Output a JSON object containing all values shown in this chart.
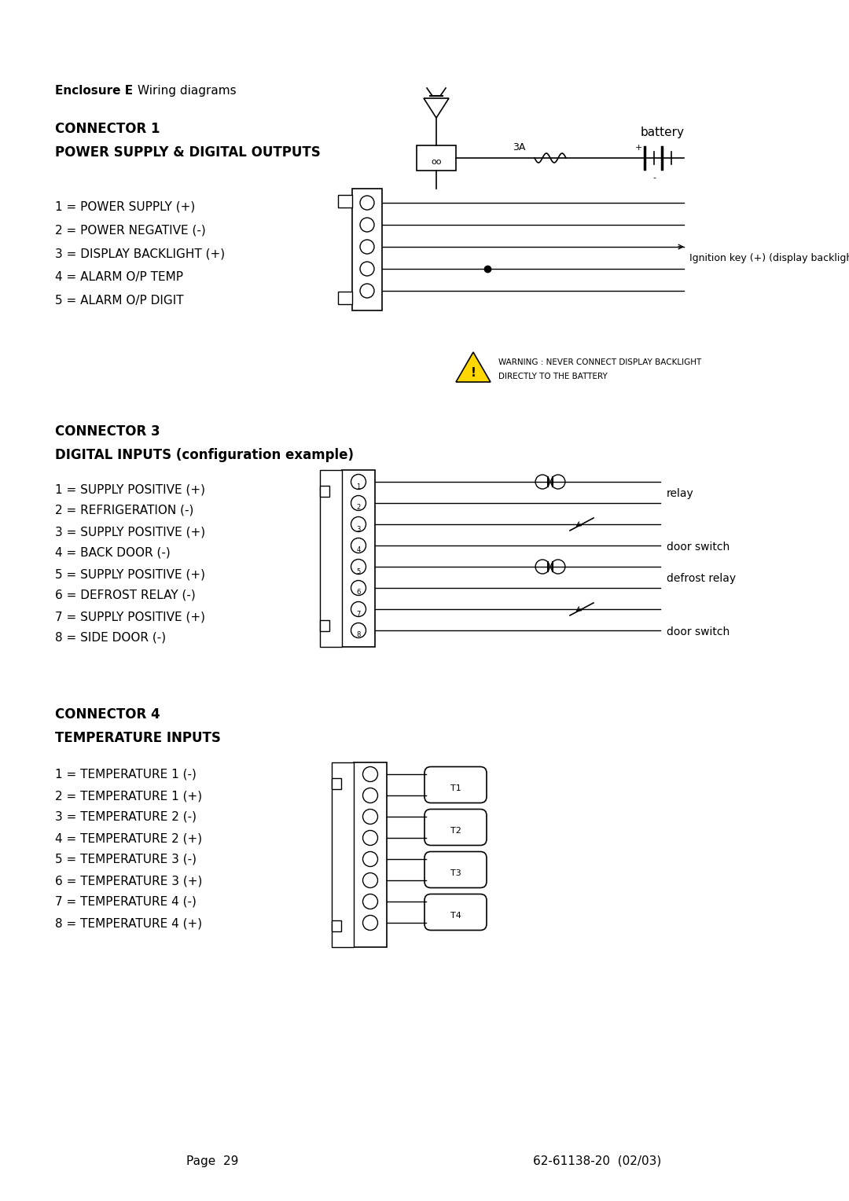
{
  "bg_color": "#ffffff",
  "header_title": "Enclosure E",
  "header_subtitle": "Wiring diagrams",
  "page_num": "Page  29",
  "doc_num": "62-61138-20  (02/03)",
  "conn1_title1": "CONNECTOR 1",
  "conn1_title2": "POWER SUPPLY & DIGITAL OUTPUTS",
  "conn1_pins": [
    "1 = POWER SUPPLY (+)",
    "2 = POWER NEGATIVE (-)",
    "3 = DISPLAY BACKLIGHT (+)",
    "4 = ALARM O/P TEMP",
    "5 = ALARM O/P DIGIT"
  ],
  "conn3_title1": "CONNECTOR 3",
  "conn3_title2": "DIGITAL INPUTS (configuration example)",
  "conn3_pins": [
    "1 = SUPPLY POSITIVE (+)",
    "2 = REFRIGERATION (-)",
    "3 = SUPPLY POSITIVE (+)",
    "4 = BACK DOOR (-)",
    "5 = SUPPLY POSITIVE (+)",
    "6 = DEFROST RELAY (-)",
    "7 = SUPPLY POSITIVE (+)",
    "8 = SIDE DOOR (-)"
  ],
  "conn3_labels": [
    "relay",
    "door switch",
    "defrost relay",
    "door switch"
  ],
  "conn4_title1": "CONNECTOR 4",
  "conn4_title2": "TEMPERATURE INPUTS",
  "conn4_pins": [
    "1 = TEMPERATURE 1 (-)",
    "2 = TEMPERATURE 1 (+)",
    "3 = TEMPERATURE 2 (-)",
    "4 = TEMPERATURE 2 (+)",
    "5 = TEMPERATURE 3 (-)",
    "6 = TEMPERATURE 3 (+)",
    "7 = TEMPERATURE 4 (-)",
    "8 = TEMPERATURE 4 (+)"
  ],
  "conn4_sensor_labels": [
    "T1",
    "T2",
    "T3",
    "T4"
  ],
  "warning_text1": "WARNING : NEVER CONNECT DISPLAY BACKLIGHT",
  "warning_text2": "DIRECTLY TO THE BATTERY",
  "ignition_label": "Ignition key (+) (display backlight)",
  "battery_label": "battery",
  "fuse_label": "3A"
}
